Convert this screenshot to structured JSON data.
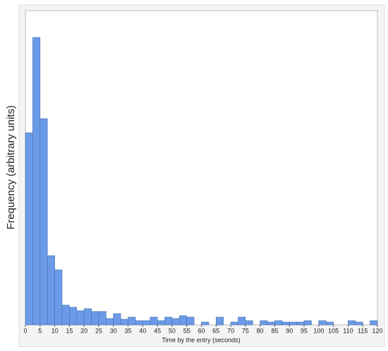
{
  "chart_data": {
    "type": "histogram",
    "x_label": "Time by the entry (seconds)",
    "y_label": "Frequency (arbitrary units)",
    "bins": [
      0,
      2.5,
      5,
      7.5,
      10,
      12.5,
      15,
      17.5,
      20,
      22.5,
      25,
      27.5,
      30,
      32.5,
      35,
      37.5,
      40,
      42.5,
      45,
      47.5,
      50,
      52.5,
      55,
      57.5,
      60,
      62.5,
      65,
      67.5,
      70,
      72.5,
      75,
      77.5,
      80,
      82.5,
      85,
      87.5,
      90,
      92.5,
      95,
      97.5,
      100,
      102.5,
      105,
      107.5,
      110,
      112.5,
      115,
      117.5,
      120
    ],
    "values": [
      272,
      407,
      292,
      98,
      78,
      28,
      25,
      20,
      23,
      19,
      19,
      9,
      16,
      8,
      11,
      6,
      6,
      11,
      6,
      11,
      9,
      13,
      11,
      0,
      4,
      0,
      11,
      0,
      4,
      11,
      6,
      0,
      6,
      4,
      6,
      4,
      4,
      4,
      6,
      0,
      6,
      4,
      0,
      0,
      6,
      4,
      0,
      6
    ],
    "color": "#6b9be8",
    "xlim": [
      0,
      120
    ],
    "xticks": [
      0,
      5,
      10,
      15,
      20,
      25,
      30,
      35,
      40,
      45,
      50,
      55,
      60,
      65,
      70,
      75,
      80,
      85,
      90,
      95,
      100,
      105,
      110,
      115,
      120
    ],
    "ylim": [
      0,
      445
    ]
  }
}
